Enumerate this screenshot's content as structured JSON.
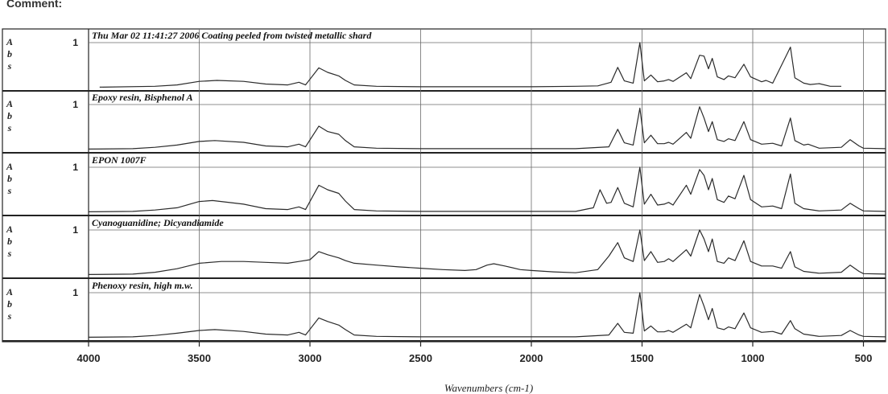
{
  "header": {
    "cut_label": "Comment:"
  },
  "chart_data": {
    "type": "line",
    "xlabel": "Wavenumbers (cm-1)",
    "ylabel": "Abs",
    "xlim": [
      4000,
      400
    ],
    "x_reversed": true,
    "x_ticks": [
      4000,
      3500,
      3000,
      2500,
      2000,
      1500,
      1000,
      500
    ],
    "y_tick_label": "1",
    "grid": true,
    "colors": {
      "line": "#2b2b2b",
      "grid": "#6a6a6a",
      "frame": "#222222"
    },
    "series": [
      {
        "name": "Thu Mar 02 11:41:27 2006 Coating peeled from twisted metallic shard",
        "points": [
          [
            3950,
            0.01
          ],
          [
            3700,
            0.03
          ],
          [
            3600,
            0.06
          ],
          [
            3500,
            0.14
          ],
          [
            3420,
            0.16
          ],
          [
            3300,
            0.14
          ],
          [
            3200,
            0.08
          ],
          [
            3100,
            0.06
          ],
          [
            3050,
            0.12
          ],
          [
            3020,
            0.06
          ],
          [
            2960,
            0.44
          ],
          [
            2920,
            0.34
          ],
          [
            2870,
            0.26
          ],
          [
            2840,
            0.16
          ],
          [
            2800,
            0.06
          ],
          [
            2700,
            0.03
          ],
          [
            2500,
            0.02
          ],
          [
            2000,
            0.02
          ],
          [
            1800,
            0.03
          ],
          [
            1700,
            0.04
          ],
          [
            1640,
            0.12
          ],
          [
            1610,
            0.45
          ],
          [
            1580,
            0.15
          ],
          [
            1540,
            0.1
          ],
          [
            1510,
            1.0
          ],
          [
            1490,
            0.15
          ],
          [
            1460,
            0.28
          ],
          [
            1430,
            0.13
          ],
          [
            1400,
            0.15
          ],
          [
            1380,
            0.18
          ],
          [
            1360,
            0.14
          ],
          [
            1300,
            0.33
          ],
          [
            1280,
            0.2
          ],
          [
            1240,
            0.72
          ],
          [
            1220,
            0.7
          ],
          [
            1200,
            0.42
          ],
          [
            1183,
            0.65
          ],
          [
            1160,
            0.24
          ],
          [
            1130,
            0.18
          ],
          [
            1110,
            0.26
          ],
          [
            1080,
            0.22
          ],
          [
            1040,
            0.52
          ],
          [
            1010,
            0.24
          ],
          [
            960,
            0.13
          ],
          [
            940,
            0.16
          ],
          [
            910,
            0.1
          ],
          [
            830,
            0.9
          ],
          [
            810,
            0.22
          ],
          [
            770,
            0.1
          ],
          [
            740,
            0.07
          ],
          [
            700,
            0.09
          ],
          [
            650,
            0.03
          ],
          [
            600,
            0.03
          ]
        ]
      },
      {
        "name": "Epoxy resin, Bisphenol A",
        "points": [
          [
            4000,
            0.01
          ],
          [
            3800,
            0.02
          ],
          [
            3700,
            0.05
          ],
          [
            3600,
            0.1
          ],
          [
            3500,
            0.18
          ],
          [
            3430,
            0.2
          ],
          [
            3300,
            0.16
          ],
          [
            3200,
            0.08
          ],
          [
            3100,
            0.06
          ],
          [
            3050,
            0.12
          ],
          [
            3020,
            0.06
          ],
          [
            2960,
            0.52
          ],
          [
            2920,
            0.4
          ],
          [
            2870,
            0.34
          ],
          [
            2840,
            0.2
          ],
          [
            2800,
            0.06
          ],
          [
            2700,
            0.03
          ],
          [
            2500,
            0.02
          ],
          [
            2000,
            0.02
          ],
          [
            1800,
            0.02
          ],
          [
            1650,
            0.06
          ],
          [
            1610,
            0.45
          ],
          [
            1580,
            0.15
          ],
          [
            1540,
            0.1
          ],
          [
            1510,
            0.92
          ],
          [
            1490,
            0.15
          ],
          [
            1460,
            0.32
          ],
          [
            1430,
            0.13
          ],
          [
            1400,
            0.13
          ],
          [
            1380,
            0.16
          ],
          [
            1360,
            0.12
          ],
          [
            1300,
            0.38
          ],
          [
            1280,
            0.25
          ],
          [
            1240,
            0.95
          ],
          [
            1220,
            0.7
          ],
          [
            1200,
            0.4
          ],
          [
            1183,
            0.62
          ],
          [
            1160,
            0.22
          ],
          [
            1130,
            0.18
          ],
          [
            1110,
            0.24
          ],
          [
            1080,
            0.2
          ],
          [
            1040,
            0.62
          ],
          [
            1010,
            0.22
          ],
          [
            960,
            0.12
          ],
          [
            910,
            0.14
          ],
          [
            870,
            0.08
          ],
          [
            830,
            0.7
          ],
          [
            810,
            0.2
          ],
          [
            770,
            0.1
          ],
          [
            750,
            0.12
          ],
          [
            700,
            0.03
          ],
          [
            600,
            0.05
          ],
          [
            560,
            0.22
          ],
          [
            520,
            0.08
          ],
          [
            500,
            0.03
          ],
          [
            400,
            0.02
          ]
        ]
      },
      {
        "name": "EPON 1007F",
        "points": [
          [
            4000,
            0.01
          ],
          [
            3800,
            0.02
          ],
          [
            3700,
            0.05
          ],
          [
            3600,
            0.1
          ],
          [
            3500,
            0.24
          ],
          [
            3440,
            0.26
          ],
          [
            3300,
            0.18
          ],
          [
            3200,
            0.08
          ],
          [
            3100,
            0.06
          ],
          [
            3050,
            0.12
          ],
          [
            3020,
            0.06
          ],
          [
            2960,
            0.6
          ],
          [
            2920,
            0.5
          ],
          [
            2870,
            0.42
          ],
          [
            2840,
            0.25
          ],
          [
            2800,
            0.06
          ],
          [
            2700,
            0.03
          ],
          [
            2500,
            0.02
          ],
          [
            2000,
            0.02
          ],
          [
            1800,
            0.02
          ],
          [
            1720,
            0.1
          ],
          [
            1690,
            0.5
          ],
          [
            1660,
            0.2
          ],
          [
            1640,
            0.22
          ],
          [
            1610,
            0.55
          ],
          [
            1580,
            0.2
          ],
          [
            1540,
            0.12
          ],
          [
            1510,
            1.0
          ],
          [
            1490,
            0.18
          ],
          [
            1460,
            0.4
          ],
          [
            1430,
            0.16
          ],
          [
            1400,
            0.18
          ],
          [
            1380,
            0.22
          ],
          [
            1360,
            0.16
          ],
          [
            1300,
            0.6
          ],
          [
            1280,
            0.4
          ],
          [
            1240,
            0.95
          ],
          [
            1220,
            0.82
          ],
          [
            1200,
            0.5
          ],
          [
            1183,
            0.75
          ],
          [
            1160,
            0.28
          ],
          [
            1130,
            0.22
          ],
          [
            1110,
            0.36
          ],
          [
            1080,
            0.3
          ],
          [
            1040,
            0.82
          ],
          [
            1010,
            0.28
          ],
          [
            960,
            0.12
          ],
          [
            910,
            0.14
          ],
          [
            870,
            0.08
          ],
          [
            830,
            0.85
          ],
          [
            810,
            0.2
          ],
          [
            770,
            0.08
          ],
          [
            700,
            0.03
          ],
          [
            600,
            0.05
          ],
          [
            560,
            0.2
          ],
          [
            520,
            0.08
          ],
          [
            500,
            0.03
          ],
          [
            400,
            0.02
          ]
        ]
      },
      {
        "name": "Cyanoguanidine; Dicyandiamide",
        "points": [
          [
            4000,
            0.01
          ],
          [
            3800,
            0.02
          ],
          [
            3700,
            0.06
          ],
          [
            3600,
            0.14
          ],
          [
            3500,
            0.26
          ],
          [
            3400,
            0.3
          ],
          [
            3300,
            0.3
          ],
          [
            3200,
            0.28
          ],
          [
            3100,
            0.26
          ],
          [
            3050,
            0.3
          ],
          [
            3000,
            0.34
          ],
          [
            2960,
            0.52
          ],
          [
            2920,
            0.45
          ],
          [
            2870,
            0.38
          ],
          [
            2840,
            0.32
          ],
          [
            2800,
            0.26
          ],
          [
            2700,
            0.22
          ],
          [
            2600,
            0.18
          ],
          [
            2500,
            0.15
          ],
          [
            2400,
            0.12
          ],
          [
            2300,
            0.1
          ],
          [
            2250,
            0.12
          ],
          [
            2200,
            0.22
          ],
          [
            2170,
            0.25
          ],
          [
            2120,
            0.2
          ],
          [
            2050,
            0.12
          ],
          [
            2000,
            0.1
          ],
          [
            1900,
            0.07
          ],
          [
            1800,
            0.05
          ],
          [
            1700,
            0.12
          ],
          [
            1650,
            0.42
          ],
          [
            1610,
            0.72
          ],
          [
            1580,
            0.38
          ],
          [
            1540,
            0.3
          ],
          [
            1510,
            1.0
          ],
          [
            1490,
            0.32
          ],
          [
            1460,
            0.52
          ],
          [
            1430,
            0.28
          ],
          [
            1400,
            0.3
          ],
          [
            1380,
            0.36
          ],
          [
            1360,
            0.3
          ],
          [
            1300,
            0.56
          ],
          [
            1280,
            0.42
          ],
          [
            1240,
            1.0
          ],
          [
            1220,
            0.8
          ],
          [
            1200,
            0.52
          ],
          [
            1183,
            0.8
          ],
          [
            1160,
            0.3
          ],
          [
            1130,
            0.26
          ],
          [
            1110,
            0.38
          ],
          [
            1080,
            0.32
          ],
          [
            1040,
            0.76
          ],
          [
            1010,
            0.3
          ],
          [
            960,
            0.2
          ],
          [
            910,
            0.2
          ],
          [
            870,
            0.15
          ],
          [
            830,
            0.52
          ],
          [
            810,
            0.18
          ],
          [
            770,
            0.08
          ],
          [
            700,
            0.04
          ],
          [
            600,
            0.06
          ],
          [
            560,
            0.22
          ],
          [
            520,
            0.08
          ],
          [
            500,
            0.03
          ],
          [
            400,
            0.02
          ]
        ]
      },
      {
        "name": "Phenoxy resin, high m.w.",
        "points": [
          [
            4000,
            0.01
          ],
          [
            3800,
            0.02
          ],
          [
            3700,
            0.05
          ],
          [
            3600,
            0.1
          ],
          [
            3500,
            0.16
          ],
          [
            3430,
            0.18
          ],
          [
            3300,
            0.14
          ],
          [
            3200,
            0.08
          ],
          [
            3100,
            0.06
          ],
          [
            3050,
            0.12
          ],
          [
            3020,
            0.06
          ],
          [
            2960,
            0.44
          ],
          [
            2920,
            0.36
          ],
          [
            2870,
            0.28
          ],
          [
            2840,
            0.18
          ],
          [
            2800,
            0.06
          ],
          [
            2700,
            0.03
          ],
          [
            2500,
            0.02
          ],
          [
            2000,
            0.02
          ],
          [
            1800,
            0.02
          ],
          [
            1650,
            0.06
          ],
          [
            1610,
            0.32
          ],
          [
            1580,
            0.12
          ],
          [
            1540,
            0.1
          ],
          [
            1510,
            1.0
          ],
          [
            1490,
            0.15
          ],
          [
            1460,
            0.26
          ],
          [
            1430,
            0.13
          ],
          [
            1400,
            0.13
          ],
          [
            1380,
            0.16
          ],
          [
            1360,
            0.12
          ],
          [
            1300,
            0.3
          ],
          [
            1280,
            0.22
          ],
          [
            1240,
            0.96
          ],
          [
            1220,
            0.7
          ],
          [
            1200,
            0.4
          ],
          [
            1183,
            0.65
          ],
          [
            1160,
            0.22
          ],
          [
            1130,
            0.18
          ],
          [
            1110,
            0.24
          ],
          [
            1080,
            0.2
          ],
          [
            1040,
            0.55
          ],
          [
            1010,
            0.22
          ],
          [
            960,
            0.12
          ],
          [
            910,
            0.14
          ],
          [
            870,
            0.08
          ],
          [
            830,
            0.38
          ],
          [
            810,
            0.2
          ],
          [
            770,
            0.08
          ],
          [
            700,
            0.03
          ],
          [
            600,
            0.05
          ],
          [
            560,
            0.16
          ],
          [
            520,
            0.06
          ],
          [
            500,
            0.03
          ],
          [
            400,
            0.02
          ]
        ]
      }
    ]
  }
}
